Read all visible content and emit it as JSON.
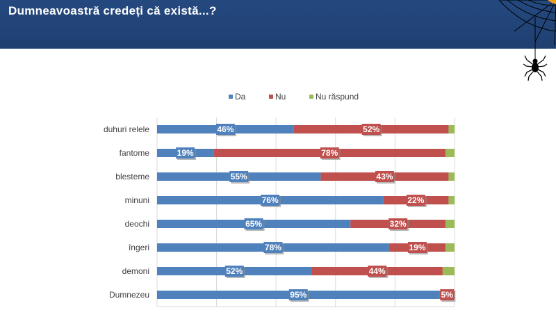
{
  "header": {
    "title": "Dumneavoastră credeți că există...?"
  },
  "colors": {
    "header_bg": "#1f3f70",
    "da": "#4f81bd",
    "nu": "#c0504d",
    "nu_raspund": "#9bbb59"
  },
  "chart_data": {
    "type": "bar",
    "orientation": "horizontal",
    "stacked": true,
    "grid": true,
    "legend_position": "top",
    "categories": [
      "duhuri relele",
      "fantome",
      "blesteme",
      "minuni",
      "deochi",
      "îngeri",
      "demoni",
      "Dumnezeu"
    ],
    "series": [
      {
        "name": "Da",
        "color": "#4f81bd",
        "values": [
          46,
          19,
          55,
          76,
          65,
          78,
          52,
          95
        ]
      },
      {
        "name": "Nu",
        "color": "#c0504d",
        "values": [
          52,
          78,
          43,
          22,
          32,
          19,
          44,
          5
        ]
      },
      {
        "name": "Nu răspund",
        "color": "#9bbb59",
        "values": [
          2,
          3,
          2,
          2,
          3,
          3,
          4,
          0
        ]
      }
    ],
    "data_labels": {
      "Da": [
        "46%",
        "19%",
        "55%",
        "76%",
        "65%",
        "78%",
        "52%",
        "95%"
      ],
      "Nu": [
        "52%",
        "78%",
        "43%",
        "22%",
        "32%",
        "19%",
        "44%",
        "5%"
      ]
    },
    "xlim": [
      0,
      100
    ]
  }
}
